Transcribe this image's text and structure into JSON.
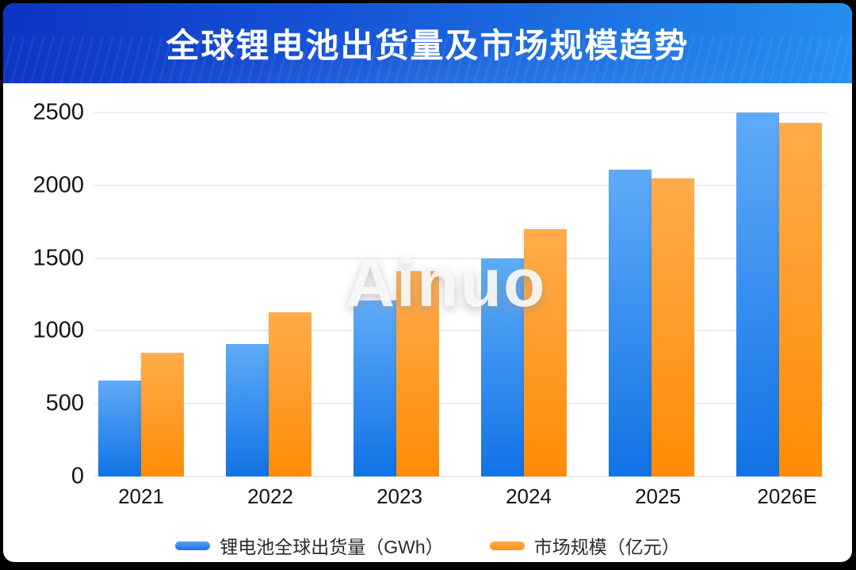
{
  "header": {
    "title": "全球锂电池出货量及市场规模趋势"
  },
  "watermark": "Ainuo",
  "colors": {
    "banner_left": "#0E33C2",
    "banner_right": "#2590F0",
    "bar_blue_top": "#5FABF8",
    "bar_blue_bottom": "#1173E6",
    "bar_orange_top": "#FFAC4B",
    "bar_orange_bottom": "#FF8C05",
    "gridline": "#EDEDED",
    "axis_text": "#141414"
  },
  "chart_data": {
    "type": "bar",
    "title": "全球锂电池出货量及市场规模趋势",
    "categories": [
      "2021",
      "2022",
      "2023",
      "2024",
      "2025",
      "2026E"
    ],
    "series": [
      {
        "name": "锂电池全球出货量（GWh）",
        "color": "#1E7CE8",
        "values": [
          660,
          910,
          1210,
          1500,
          2110,
          2500
        ]
      },
      {
        "name": "市场规模（亿元）",
        "color": "#FF9A2E",
        "values": [
          850,
          1130,
          1410,
          1700,
          2050,
          2430
        ]
      }
    ],
    "xlabel": "",
    "ylabel": "",
    "ylim": [
      0,
      2500
    ],
    "yticks": [
      0,
      500,
      1000,
      1500,
      2000,
      2500
    ],
    "grid": true,
    "legend_position": "bottom"
  }
}
